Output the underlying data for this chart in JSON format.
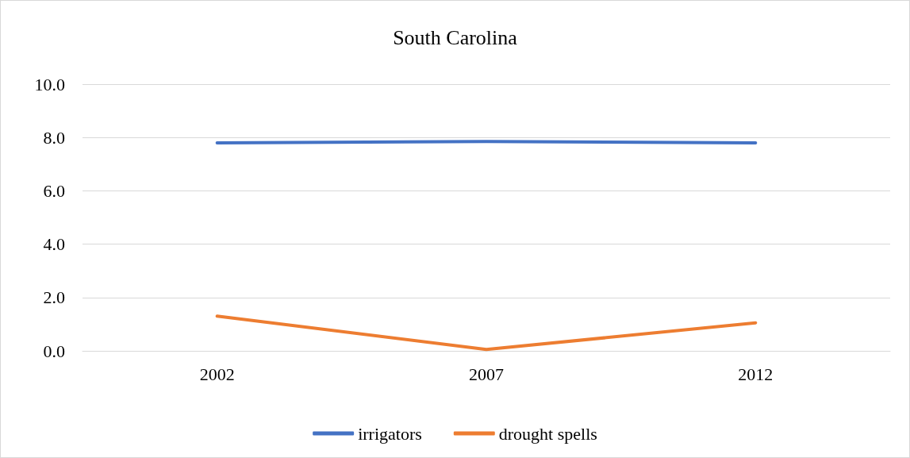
{
  "chart_data": {
    "type": "line",
    "title": "South Carolina",
    "categories": [
      "2002",
      "2007",
      "2012"
    ],
    "series": [
      {
        "name": "irrigators",
        "color": "#4472c4",
        "values": [
          7.8,
          7.85,
          7.8
        ]
      },
      {
        "name": "drought spells",
        "color": "#ed7d31",
        "values": [
          1.3,
          0.05,
          1.05
        ]
      }
    ],
    "ylim": [
      0,
      10
    ],
    "yticks": [
      {
        "value": 0,
        "label": "0.0"
      },
      {
        "value": 2,
        "label": "2.0"
      },
      {
        "value": 4,
        "label": "4.0"
      },
      {
        "value": 6,
        "label": "6.0"
      },
      {
        "value": 8,
        "label": "8.0"
      },
      {
        "value": 10,
        "label": "10.0"
      }
    ],
    "grid": "y",
    "legend": "bottom"
  }
}
